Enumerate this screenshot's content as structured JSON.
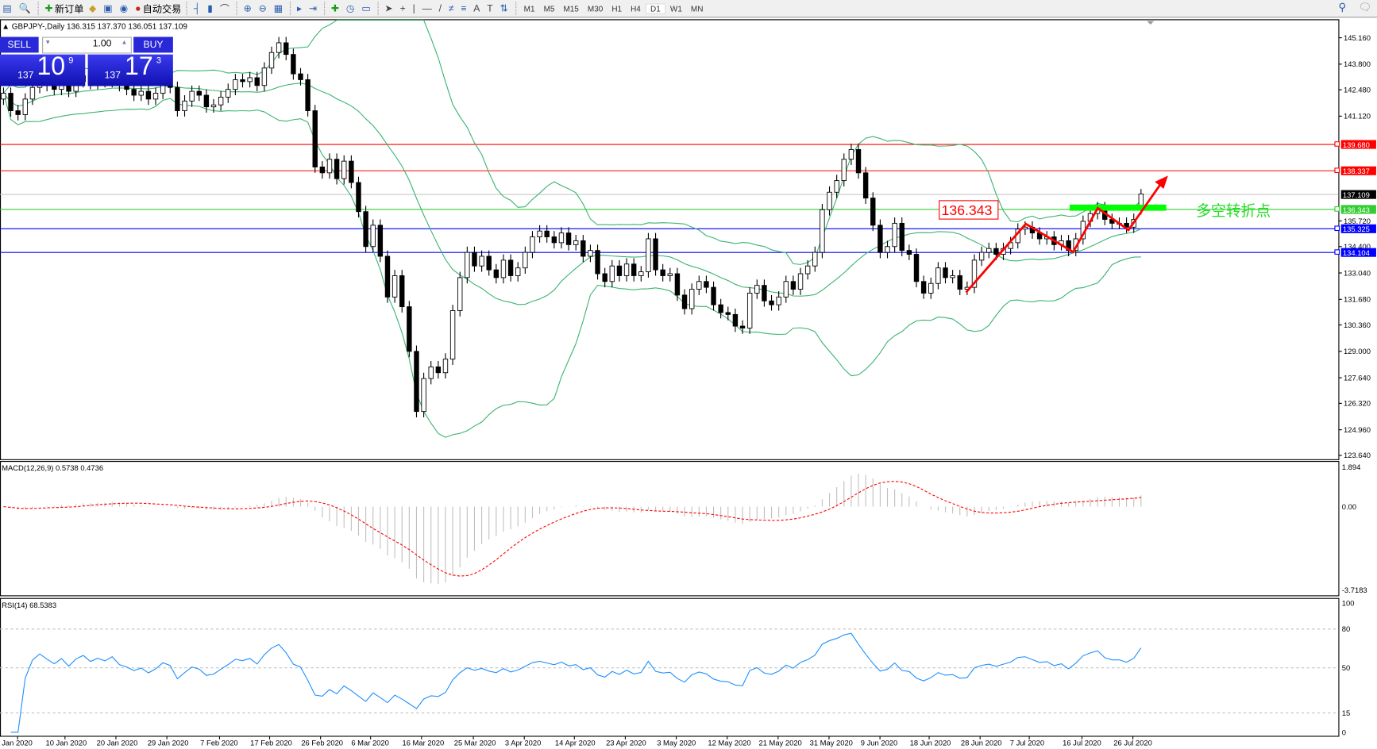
{
  "toolbar": {
    "items": [
      {
        "icon": "new-chart-icon",
        "label": ""
      },
      {
        "icon": "zoom-chart-icon",
        "label": ""
      },
      {
        "icon": "new-order-icon",
        "label": "新订单"
      },
      {
        "icon": "metaeditor-icon",
        "label": ""
      },
      {
        "icon": "navigator-icon",
        "label": ""
      },
      {
        "icon": "signals-icon",
        "label": ""
      },
      {
        "icon": "auto-trading-icon",
        "label": "自动交易"
      },
      {
        "icon": "bar-chart-icon",
        "label": ""
      },
      {
        "icon": "candlestick-icon",
        "label": ""
      },
      {
        "icon": "line-chart-icon",
        "label": ""
      },
      {
        "icon": "zoom-in-icon",
        "label": ""
      },
      {
        "icon": "zoom-out-icon",
        "label": ""
      },
      {
        "icon": "tile-windows-icon",
        "label": ""
      },
      {
        "icon": "chart-shift-icon",
        "label": ""
      },
      {
        "icon": "autoscroll-icon",
        "label": ""
      },
      {
        "icon": "indicators-icon",
        "label": ""
      },
      {
        "icon": "periods-icon",
        "label": ""
      },
      {
        "icon": "templates-icon",
        "label": ""
      },
      {
        "icon": "cursor-icon",
        "label": ""
      },
      {
        "icon": "crosshair-icon",
        "label": ""
      },
      {
        "icon": "vertical-line-icon",
        "label": ""
      },
      {
        "icon": "horizontal-line-icon",
        "label": ""
      },
      {
        "icon": "trendline-icon",
        "label": ""
      },
      {
        "icon": "equidistant-channel-icon",
        "label": ""
      },
      {
        "icon": "fibonacci-icon",
        "label": ""
      },
      {
        "icon": "text-icon",
        "label": ""
      },
      {
        "icon": "text-label-icon",
        "label": ""
      },
      {
        "icon": "arrows-icon",
        "label": ""
      }
    ],
    "timeframes": [
      "M1",
      "M5",
      "M15",
      "M30",
      "H1",
      "H4",
      "D1",
      "W1",
      "MN"
    ],
    "active_timeframe": "D1"
  },
  "chart": {
    "header": "GBPJPY-,Daily",
    "ohlc_text": "136.315 137.370 136.051 137.109",
    "price_ticks": [
      "145.160",
      "143.800",
      "142.480",
      "141.120",
      "135.720",
      "134.400",
      "133.040",
      "131.680",
      "130.360",
      "129.000",
      "127.640",
      "126.320",
      "124.960",
      "123.640"
    ],
    "hlines": [
      {
        "price": 139.68,
        "label": "139.680",
        "color": "#ff0000"
      },
      {
        "price": 138.337,
        "label": "138.337",
        "color": "#ff0000"
      },
      {
        "price": 137.109,
        "label": "137.109",
        "color": "#000000",
        "line": "#c0c0c0"
      },
      {
        "price": 136.343,
        "label": "136.343",
        "color": "#32cd32"
      },
      {
        "price": 135.325,
        "label": "135.325",
        "color": "#0000ff"
      },
      {
        "price": 134.104,
        "label": "134.104",
        "color": "#0000ff"
      }
    ],
    "annotation_box": "136.343",
    "annotation_text": "多空转折点",
    "dates": [
      "Jan 2020",
      "10 Jan 2020",
      "20 Jan 2020",
      "29 Jan 2020",
      "7 Feb 2020",
      "17 Feb 2020",
      "26 Feb 2020",
      "6 Mar 2020",
      "16 Mar 2020",
      "25 Mar 2020",
      "3 Apr 2020",
      "14 Apr 2020",
      "23 Apr 2020",
      "3 May 2020",
      "12 May 2020",
      "21 May 2020",
      "31 May 2020",
      "9 Jun 2020",
      "18 Jun 2020",
      "28 Jun 2020",
      "7 Jul 2020",
      "16 Jul 2020",
      "26 Jul 2020"
    ]
  },
  "trade_panel": {
    "sell_label": "SELL",
    "buy_label": "BUY",
    "lot": "1.00",
    "sell_prefix": "137",
    "sell_big": "10",
    "sell_sup": "9",
    "buy_prefix": "137",
    "buy_big": "17",
    "buy_sup": "3"
  },
  "macd": {
    "label": "MACD(12,26,9) 0.5738 0.4736",
    "ticks": [
      "1.894",
      "0.00",
      "-3.7183"
    ]
  },
  "rsi": {
    "label": "RSI(14) 68.5383",
    "ticks": [
      "100",
      "80",
      "50",
      "15",
      "0"
    ]
  },
  "chart_data": {
    "type": "candlestick",
    "symbol": "GBPJPY-",
    "timeframe": "Daily",
    "last_bar": {
      "open": 136.315,
      "high": 137.37,
      "low": 136.051,
      "close": 137.109
    },
    "ylim": [
      123.64,
      145.16
    ],
    "close": [
      142.3,
      141.4,
      141.2,
      142.0,
      142.6,
      142.9,
      142.7,
      142.5,
      142.8,
      142.4,
      142.9,
      143.2,
      142.8,
      143.1,
      142.9,
      143.3,
      142.7,
      142.5,
      142.2,
      142.4,
      142.0,
      142.3,
      142.8,
      142.6,
      141.4,
      141.9,
      142.4,
      142.2,
      141.6,
      141.7,
      142.1,
      142.5,
      143.0,
      142.9,
      143.1,
      142.7,
      143.6,
      144.4,
      144.9,
      144.3,
      143.3,
      143.0,
      141.4,
      138.5,
      138.2,
      138.9,
      137.9,
      138.8,
      137.7,
      136.2,
      134.4,
      135.5,
      133.9,
      131.8,
      132.9,
      131.3,
      129.0,
      125.9,
      127.6,
      128.2,
      127.9,
      128.6,
      131.1,
      132.8,
      134.1,
      133.4,
      133.9,
      133.2,
      132.8,
      133.7,
      132.9,
      133.3,
      134.1,
      134.9,
      135.2,
      134.9,
      134.6,
      135.1,
      134.5,
      134.7,
      133.9,
      134.2,
      133.0,
      132.6,
      133.4,
      132.9,
      133.5,
      132.9,
      133.1,
      134.8,
      133.2,
      132.9,
      133.0,
      131.9,
      131.2,
      132.2,
      132.6,
      132.3,
      131.4,
      131.0,
      130.9,
      130.3,
      130.2,
      132.0,
      132.4,
      131.6,
      131.4,
      131.8,
      132.6,
      132.2,
      133.0,
      133.4,
      134.1,
      136.3,
      137.2,
      137.8,
      138.9,
      139.4,
      138.2,
      136.9,
      135.5,
      134.1,
      134.4,
      135.6,
      134.2,
      134.0,
      132.6,
      132.0,
      132.5,
      133.3,
      132.8,
      132.9,
      132.2,
      132.3,
      133.7,
      134.1,
      134.3,
      134.0,
      134.3,
      134.6,
      135.3,
      135.4,
      135.1,
      134.8,
      134.9,
      134.5,
      134.7,
      134.2,
      134.8,
      135.7,
      136.1,
      136.4,
      135.8,
      135.6,
      135.6,
      135.4,
      135.8,
      137.109
    ],
    "indicators": [
      "Bollinger Bands(20,2)",
      "MACD(12,26,9)",
      "RSI(14)"
    ],
    "colors": {
      "bands": "#3cb371",
      "macd_hist": "#c0c0c0",
      "macd_signal": "#ff0000",
      "rsi": "#1e90ff",
      "arrow": "#ff0000",
      "zone": "#00ff00"
    }
  }
}
